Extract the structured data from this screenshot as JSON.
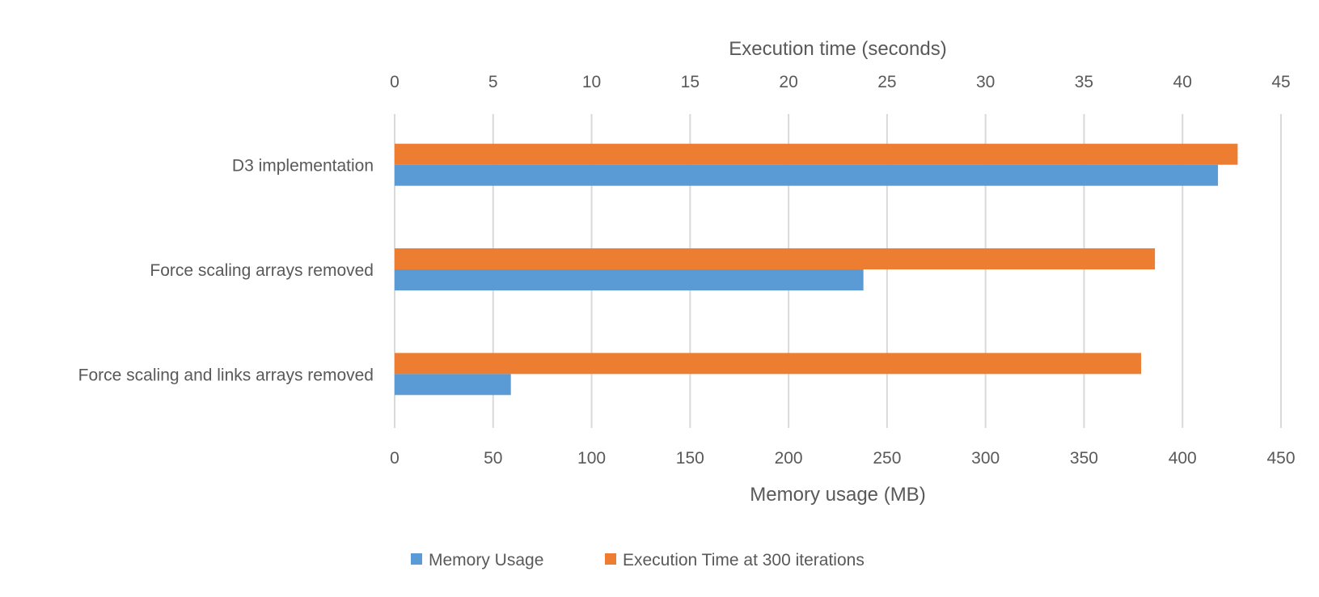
{
  "chart_data": {
    "type": "bar",
    "orientation": "horizontal",
    "categories": [
      "D3 implementation",
      "Force scaling arrays removed",
      "Force scaling and links arrays removed"
    ],
    "series": [
      {
        "name": "Memory Usage",
        "axis": "bottom",
        "color": "#5B9BD5",
        "values": [
          418,
          238,
          59
        ]
      },
      {
        "name": "Execution Time at 300 iterations",
        "axis": "top",
        "color": "#ED7D31",
        "values": [
          42.8,
          38.6,
          37.9
        ]
      }
    ],
    "top_axis": {
      "label": "Execution time (seconds)",
      "range": [
        0,
        45
      ],
      "ticks": [
        "0",
        "5",
        "10",
        "15",
        "20",
        "25",
        "30",
        "35",
        "40",
        "45"
      ]
    },
    "bottom_axis": {
      "label": "Memory usage (MB)",
      "range": [
        0,
        450
      ],
      "ticks": [
        "0",
        "50",
        "100",
        "150",
        "200",
        "250",
        "300",
        "350",
        "400",
        "450"
      ]
    },
    "grid": true,
    "legend_position": "bottom"
  }
}
